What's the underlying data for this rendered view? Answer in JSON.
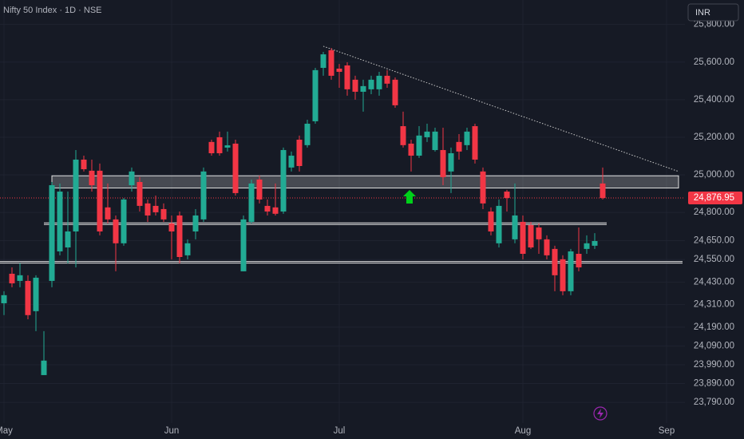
{
  "chart_data": {
    "type": "candlestick",
    "title": "Nifty 50 Index · 1D · NSE",
    "currency": "INR",
    "up_color": "#22ab94",
    "down_color": "#f23645",
    "open": [
      24317,
      24474,
      24436,
      24436,
      24275,
      23935,
      24436,
      24593,
      24614,
      24699,
      25081,
      25022,
      25022,
      24827,
      24763,
      24636,
      24945,
      24962,
      24848,
      24835,
      24818,
      24742,
      24784,
      24572,
      24699,
      24763,
      25175,
      25200,
      25145,
      25166,
      24487,
      24750,
      24975,
      24835,
      24827,
      24805,
      25039,
      25187,
      25158,
      25285,
      25569,
      25663,
      25565,
      25582,
      25506,
      25442,
      25455,
      25455,
      25527,
      25506,
      25259,
      25166,
      25102,
      25200,
      25132,
      25132,
      25018,
      25175,
      25158,
      25259,
      25018,
      24805,
      24636,
      24911,
      24657,
      24750,
      24733,
      24720,
      24657,
      24606,
      24551,
      24381,
      24580,
      24606,
      24623,
      24954
    ],
    "high": [
      24381,
      24508,
      24530,
      24466,
      24466,
      24169,
      24962,
      24954,
      24911,
      25132,
      25102,
      25081,
      25060,
      24954,
      24784,
      24877,
      25039,
      24988,
      24869,
      24890,
      24848,
      24784,
      24805,
      24657,
      24818,
      25039,
      25187,
      25230,
      25230,
      25187,
      24784,
      24975,
      24996,
      24869,
      24954,
      25145,
      25124,
      25209,
      25293,
      25569,
      25654,
      25675,
      25590,
      25599,
      25527,
      25506,
      25527,
      25548,
      25557,
      25518,
      25336,
      25187,
      25259,
      25272,
      25251,
      25251,
      25145,
      25217,
      25251,
      25272,
      25039,
      24827,
      24869,
      24920,
      24954,
      24784,
      24750,
      24742,
      24678,
      24623,
      24572,
      24606,
      24720,
      24678,
      24690,
      25039
    ],
    "low": [
      24254,
      24402,
      24402,
      24232,
      24169,
      23935,
      24402,
      24572,
      24529,
      24508,
      25018,
      24911,
      24678,
      24742,
      24487,
      24623,
      24911,
      24805,
      24750,
      24784,
      24750,
      24551,
      24529,
      24551,
      24657,
      24750,
      25102,
      25102,
      25124,
      24890,
      24487,
      24742,
      24848,
      24784,
      24784,
      24793,
      25018,
      25018,
      25145,
      25272,
      25527,
      25506,
      25463,
      25421,
      25400,
      25336,
      25429,
      25421,
      25463,
      25357,
      25145,
      25018,
      25090,
      25175,
      25124,
      24945,
      24903,
      25081,
      25132,
      25060,
      24818,
      24678,
      24614,
      24805,
      24636,
      24551,
      24606,
      24580,
      24551,
      24381,
      24360,
      24360,
      24487,
      24580,
      24606,
      24869
    ],
    "close": [
      24360,
      24423,
      24466,
      24254,
      24453,
      24012,
      24945,
      24911,
      24699,
      25081,
      25030,
      24945,
      24699,
      24763,
      24636,
      24869,
      25018,
      24835,
      24784,
      24801,
      24763,
      24699,
      24563,
      24636,
      24784,
      25018,
      25115,
      25115,
      25157,
      24903,
      24763,
      24954,
      24869,
      24805,
      24793,
      25132,
      25102,
      25047,
      25272,
      25557,
      25641,
      25527,
      25548,
      25455,
      25442,
      25472,
      25506,
      25527,
      25485,
      25370,
      25158,
      25102,
      25209,
      25230,
      25230,
      24988,
      25115,
      25124,
      25230,
      25081,
      24848,
      24699,
      24835,
      24877,
      24784,
      24580,
      24614,
      24657,
      24572,
      24466,
      24381,
      24593,
      24508,
      24636,
      24648,
      24876.95
    ],
    "last_price": {
      "value": 24876.95,
      "label": "24,876.95"
    },
    "xlim": [
      -0.5,
      84.5
    ],
    "xticks": [
      {
        "value": 0,
        "label": "May"
      },
      {
        "value": 21,
        "label": "Jun"
      },
      {
        "value": 42,
        "label": "Jul"
      },
      {
        "value": 65,
        "label": "Aug"
      },
      {
        "value": 83,
        "label": "Sep"
      }
    ],
    "ylim": [
      23680,
      25930
    ],
    "yticks": [
      {
        "value": 25800,
        "label": "25,800.00"
      },
      {
        "value": 25600,
        "label": "25,600.00"
      },
      {
        "value": 25400,
        "label": "25,400.00"
      },
      {
        "value": 25200,
        "label": "25,200.00"
      },
      {
        "value": 25000,
        "label": "25,000.00"
      },
      {
        "value": 24800,
        "label": "24,800.00"
      },
      {
        "value": 24650,
        "label": "24,650.00"
      },
      {
        "value": 24550,
        "label": "24,550.00"
      },
      {
        "value": 24430,
        "label": "24,430.00"
      },
      {
        "value": 24310,
        "label": "24,310.00"
      },
      {
        "value": 24190,
        "label": "24,190.00"
      },
      {
        "value": 24090,
        "label": "24,090.00"
      },
      {
        "value": 23990,
        "label": "23,990.00"
      },
      {
        "value": 23890,
        "label": "23,890.00"
      },
      {
        "value": 23790,
        "label": "23,790.00"
      }
    ],
    "grid": true,
    "zone": {
      "from": 6,
      "to": 84.5,
      "low": 24930,
      "high": 24995
    },
    "levels": [
      {
        "from": 5,
        "to": 75.5,
        "price": 24740
      },
      {
        "from": -0.5,
        "to": 85,
        "price": 24535
      }
    ],
    "trendline": {
      "x": [
        40,
        84.5
      ],
      "y": [
        25684,
        25018
      ]
    }
  }
}
